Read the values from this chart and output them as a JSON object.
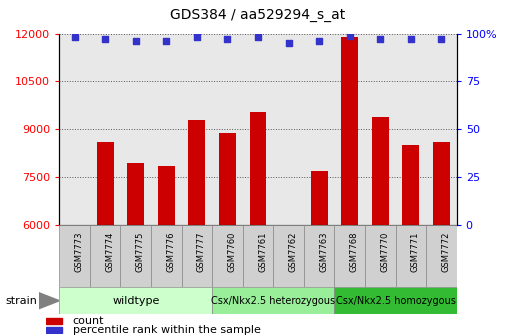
{
  "title": "GDS384 / aa529294_s_at",
  "samples": [
    "GSM7773",
    "GSM7774",
    "GSM7775",
    "GSM7776",
    "GSM7777",
    "GSM7760",
    "GSM7761",
    "GSM7762",
    "GSM7763",
    "GSM7768",
    "GSM7770",
    "GSM7771",
    "GSM7772"
  ],
  "counts": [
    6000,
    8600,
    7950,
    7850,
    9300,
    8880,
    9550,
    6000,
    7700,
    11900,
    9400,
    8500,
    8600
  ],
  "percentiles": [
    98,
    97,
    96,
    96,
    98,
    97,
    98,
    95,
    96,
    99,
    97,
    97,
    97
  ],
  "bar_color": "#cc0000",
  "dot_color": "#3333cc",
  "ylim_left": [
    6000,
    12000
  ],
  "ylim_right": [
    0,
    100
  ],
  "yticks_left": [
    6000,
    7500,
    9000,
    10500,
    12000
  ],
  "yticks_right": [
    0,
    25,
    50,
    75,
    100
  ],
  "groups": [
    {
      "label": "wildtype",
      "start": 0,
      "end": 5,
      "color": "#ccffcc",
      "text_size": 8
    },
    {
      "label": "Csx/Nkx2.5 heterozygous",
      "start": 5,
      "end": 9,
      "color": "#99ee99",
      "text_size": 7
    },
    {
      "label": "Csx/Nkx2.5 homozygous",
      "start": 9,
      "end": 13,
      "color": "#33bb33",
      "text_size": 7
    }
  ],
  "strain_label": "strain",
  "legend_count_label": "count",
  "legend_percentile_label": "percentile rank within the sample",
  "background_color": "#ffffff",
  "plot_bg_color": "#e8e8e8",
  "bar_width": 0.55,
  "title_fontsize": 10
}
